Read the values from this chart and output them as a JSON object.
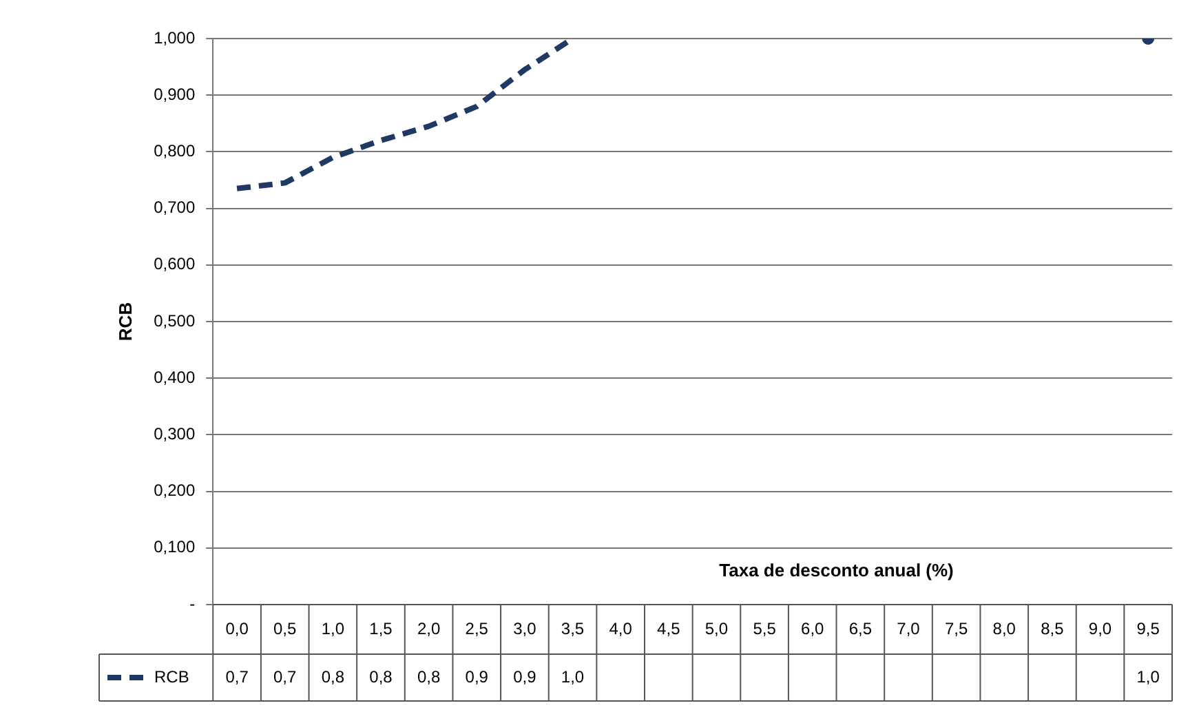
{
  "chart_data": {
    "type": "line",
    "xlabel": "Taxa de desconto anual (%)",
    "ylabel": "RCB",
    "categories": [
      "0,0",
      "0,5",
      "1,0",
      "1,5",
      "2,0",
      "2,5",
      "3,0",
      "3,5",
      "4,0",
      "4,5",
      "5,0",
      "5,5",
      "6,0",
      "6,5",
      "7,0",
      "7,5",
      "8,0",
      "8,5",
      "9,0",
      "9,5"
    ],
    "series": [
      {
        "name": "RCB",
        "color": "#1f3864",
        "values": [
          0.735,
          0.745,
          0.79,
          0.82,
          0.845,
          0.88,
          0.945,
          1.0,
          null,
          null,
          null,
          null,
          null,
          null,
          null,
          null,
          null,
          null,
          null,
          1.0
        ],
        "value_labels": [
          "0,7",
          "0,7",
          "0,8",
          "0,8",
          "0,8",
          "0,9",
          "0,9",
          "1,0",
          null,
          null,
          null,
          null,
          null,
          null,
          null,
          null,
          null,
          null,
          null,
          "1,0"
        ]
      }
    ],
    "ylim": [
      0,
      1
    ],
    "yticks": [
      {
        "value": 0,
        "label": "-"
      },
      {
        "value": 0.1,
        "label": "0,100"
      },
      {
        "value": 0.2,
        "label": "0,200"
      },
      {
        "value": 0.3,
        "label": "0,300"
      },
      {
        "value": 0.4,
        "label": "0,400"
      },
      {
        "value": 0.5,
        "label": "0,500"
      },
      {
        "value": 0.6,
        "label": "0,600"
      },
      {
        "value": 0.7,
        "label": "0,700"
      },
      {
        "value": 0.8,
        "label": "0,800"
      },
      {
        "value": 0.9,
        "label": "0,900"
      },
      {
        "value": 1.0,
        "label": "1,000"
      }
    ],
    "grid": "y",
    "legend": "bottom left",
    "line_style": "dashed",
    "marker": "none"
  }
}
